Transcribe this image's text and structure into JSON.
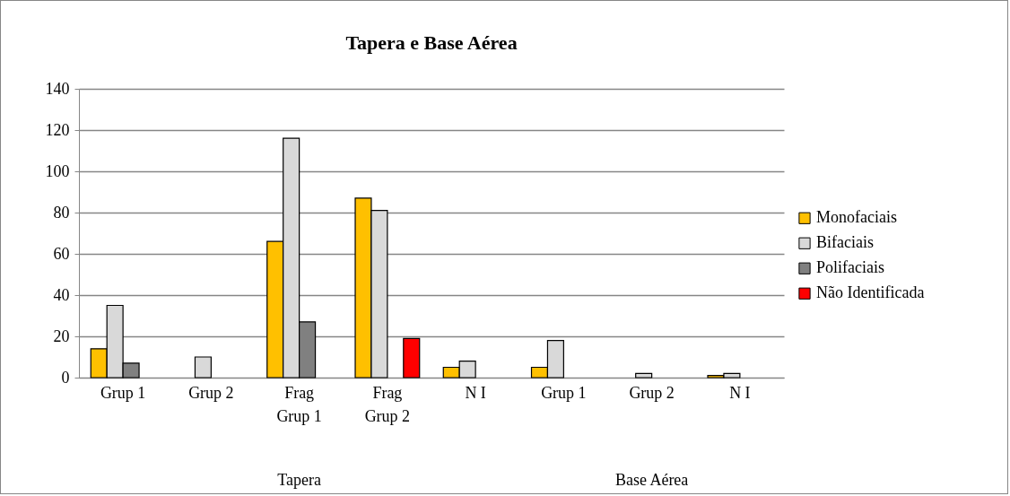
{
  "chart_data": {
    "type": "bar",
    "title": "Tapera e Base Aérea",
    "categories": [
      "Grup 1",
      "Grup 2",
      "Frag Grup 1",
      "Frag Grup 2",
      "N I",
      "Grup 1",
      "Grup 2",
      "N I"
    ],
    "annotations": [
      "Tapera",
      "Base Aérea"
    ],
    "series": [
      {
        "name": "Monofaciais",
        "color": "#ffc000",
        "values": [
          14,
          null,
          66,
          87,
          5,
          5,
          null,
          1
        ]
      },
      {
        "name": "Bifaciais",
        "color": "#d9d9d9",
        "values": [
          35,
          10,
          116,
          81,
          8,
          18,
          2,
          2
        ]
      },
      {
        "name": "Polifaciais",
        "color": "#808080",
        "values": [
          7,
          null,
          27,
          null,
          null,
          null,
          null,
          null
        ]
      },
      {
        "name": "Não Identificada",
        "color": "#ff0000",
        "values": [
          null,
          null,
          null,
          19,
          null,
          null,
          null,
          null
        ]
      }
    ],
    "ylim": [
      0,
      140
    ],
    "yticks": [
      0,
      20,
      40,
      60,
      80,
      100,
      120,
      140
    ],
    "grid": "y",
    "legend": "right"
  }
}
